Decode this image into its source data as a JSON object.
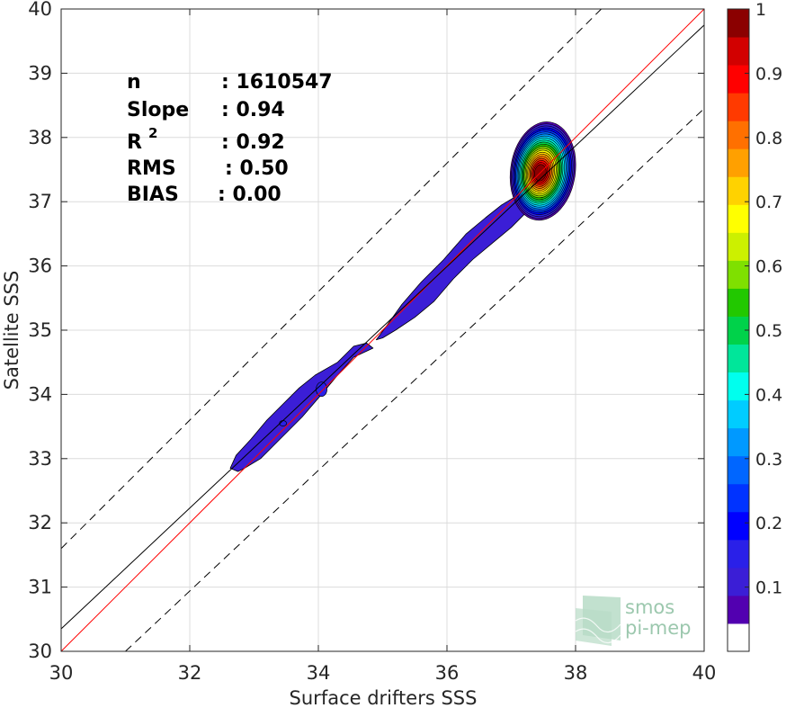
{
  "chart_data": {
    "type": "scatter",
    "subtype": "density-contour",
    "xlabel": "Surface drifters SSS",
    "ylabel": "Satellite SSS",
    "xlim": [
      30,
      40
    ],
    "ylim": [
      30,
      40
    ],
    "xticks": [
      30,
      32,
      34,
      36,
      38,
      40
    ],
    "yticks": [
      30,
      31,
      32,
      33,
      34,
      35,
      36,
      37,
      38,
      39,
      40
    ],
    "grid": true,
    "stats": [
      {
        "label": "n",
        "value": ": 1610547"
      },
      {
        "label": "Slope",
        "value": ": 0.94"
      },
      {
        "label": "R",
        "sup": "2",
        "value": ": 0.92"
      },
      {
        "label": "RMS",
        "value": ": 0.50"
      },
      {
        "label": "BIAS",
        "value": ": 0.00"
      }
    ],
    "lines": [
      {
        "role": "identity",
        "color": "#ff0000",
        "style": "solid",
        "points": [
          [
            30,
            30
          ],
          [
            40,
            40
          ]
        ]
      },
      {
        "role": "regression",
        "color": "#000000",
        "style": "solid",
        "points": [
          [
            30,
            30.35
          ],
          [
            40,
            39.75
          ]
        ]
      },
      {
        "role": "upper-bound",
        "color": "#000000",
        "style": "dashed",
        "points": [
          [
            30,
            31.6
          ],
          [
            38.4,
            40
          ]
        ]
      },
      {
        "role": "lower-bound",
        "color": "#000000",
        "style": "dashed",
        "points": [
          [
            31,
            30
          ],
          [
            40,
            38.45
          ]
        ]
      }
    ],
    "density_peak": {
      "x": 37.45,
      "y": 37.45,
      "value": 1
    },
    "density_outline": [
      [
        32.63,
        32.85
      ],
      [
        32.72,
        33.05
      ],
      [
        32.95,
        33.3
      ],
      [
        33.2,
        33.6
      ],
      [
        33.45,
        33.85
      ],
      [
        33.7,
        34.1
      ],
      [
        33.95,
        34.3
      ],
      [
        34.3,
        34.5
      ],
      [
        34.55,
        34.75
      ],
      [
        34.75,
        34.8
      ],
      [
        34.85,
        34.72
      ],
      [
        34.55,
        34.58
      ],
      [
        34.3,
        34.3
      ],
      [
        34.05,
        34.0
      ],
      [
        33.75,
        33.65
      ],
      [
        33.4,
        33.3
      ],
      [
        33.1,
        33.0
      ],
      [
        32.85,
        32.85
      ],
      [
        32.75,
        32.8
      ]
    ],
    "density_outline_2": [
      [
        34.9,
        34.85
      ],
      [
        35.05,
        35.05
      ],
      [
        35.3,
        35.4
      ],
      [
        35.6,
        35.75
      ],
      [
        35.95,
        36.1
      ],
      [
        36.3,
        36.5
      ],
      [
        36.6,
        36.75
      ],
      [
        36.85,
        36.95
      ],
      [
        37.1,
        37.1
      ],
      [
        37.25,
        37.35
      ],
      [
        37.5,
        37.05
      ],
      [
        37.3,
        36.9
      ],
      [
        37.0,
        36.6
      ],
      [
        36.7,
        36.35
      ],
      [
        36.4,
        36.1
      ],
      [
        36.1,
        35.8
      ],
      [
        35.8,
        35.45
      ],
      [
        35.5,
        35.2
      ],
      [
        35.2,
        35.0
      ],
      [
        35.0,
        34.88
      ]
    ],
    "colorbar": {
      "ticks": [
        0.1,
        0.2,
        0.3,
        0.4,
        0.5,
        0.6,
        0.7,
        0.8,
        0.9,
        1
      ],
      "tick_labels": [
        "0.1",
        "0.2",
        "0.3",
        "0.4",
        "0.5",
        "0.6",
        "0.7",
        "0.8",
        "0.9",
        "1"
      ],
      "levels": [
        "#ffffff",
        "#5200b0",
        "#3b1ed6",
        "#2a20e8",
        "#0000ff",
        "#0033ff",
        "#0066ff",
        "#0099ff",
        "#00ccff",
        "#00ffee",
        "#00e69a",
        "#00d24a",
        "#22c800",
        "#7fe000",
        "#ccf000",
        "#ffff00",
        "#ffd200",
        "#ffa000",
        "#ff7000",
        "#ff3a00",
        "#ff0000",
        "#d20000",
        "#8b0000"
      ]
    }
  },
  "logo": {
    "line1": "smos",
    "line2": "pi-mep"
  }
}
